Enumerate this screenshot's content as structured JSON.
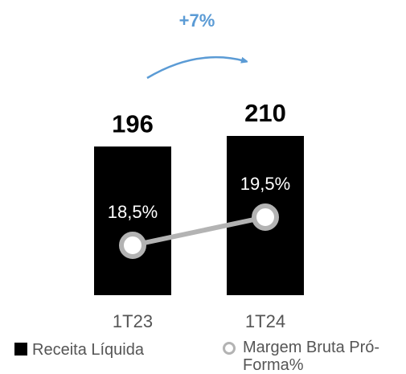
{
  "chart_data": {
    "type": "bar",
    "annotation": "+7%",
    "categories": [
      "1T23",
      "1T24"
    ],
    "series": [
      {
        "name": "Receita Líquida",
        "type": "bar",
        "color": "#000000",
        "values": [
          196,
          210
        ]
      },
      {
        "name": "Margem Bruta Pró-Forma%",
        "type": "line",
        "color": "#b3b3b3",
        "values": [
          18.5,
          19.5
        ],
        "value_labels": [
          "18,5%",
          "19,5%"
        ]
      }
    ]
  }
}
